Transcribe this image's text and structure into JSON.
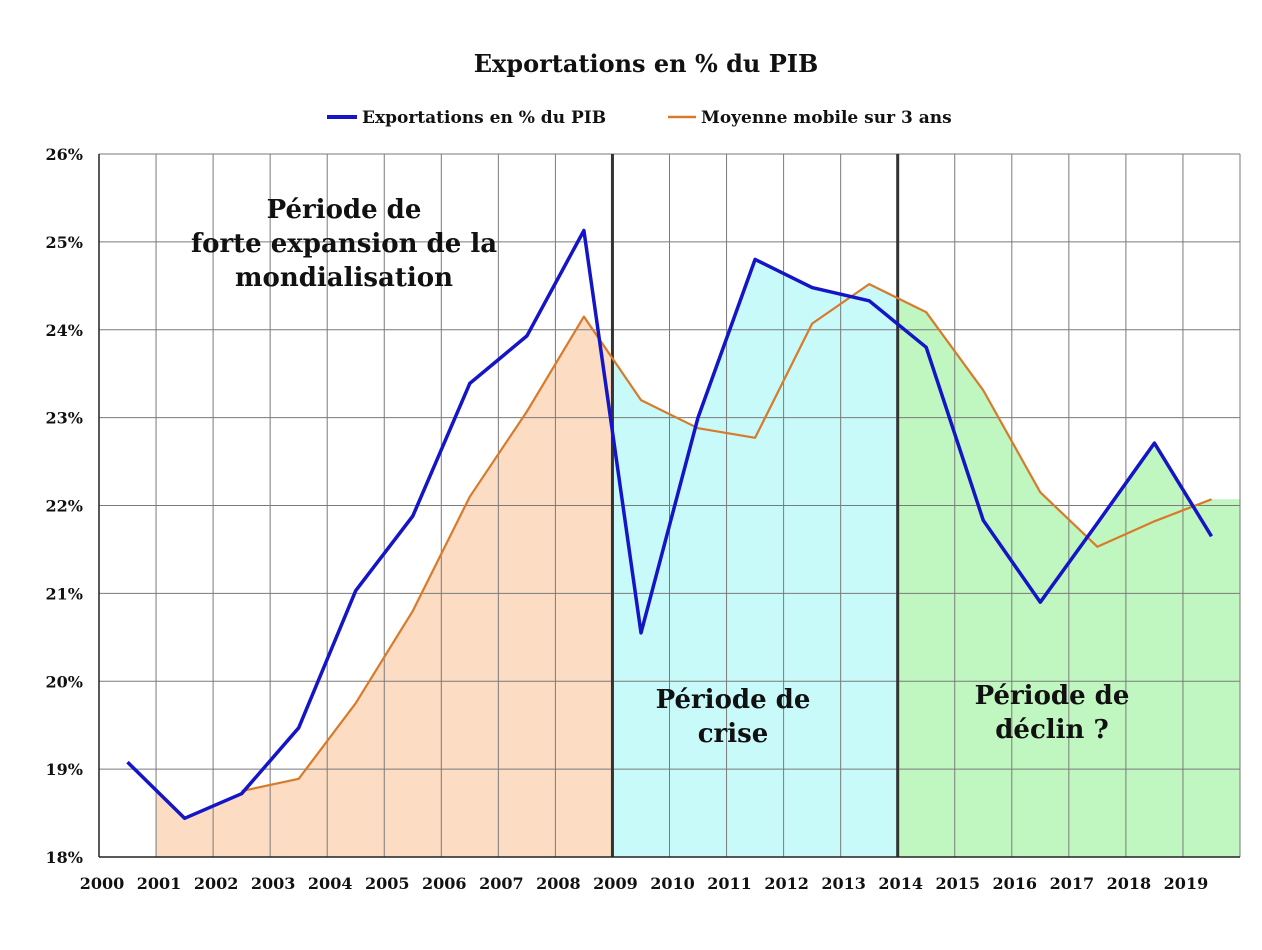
{
  "chart_data": {
    "type": "line",
    "title": "Exportations en % du PIB",
    "x": [
      "2000",
      "2001",
      "2002",
      "2003",
      "2004",
      "2005",
      "2006",
      "2007",
      "2008",
      "2009",
      "2010",
      "2011",
      "2012",
      "2013",
      "2014",
      "2015",
      "2016",
      "2017",
      "2018",
      "2019"
    ],
    "series": [
      {
        "name": "Exportations en % du PIB",
        "color": "#1515c8",
        "values": [
          19.08,
          18.44,
          18.72,
          19.47,
          21.03,
          21.88,
          23.39,
          23.93,
          25.13,
          20.55,
          23.0,
          24.8,
          24.48,
          24.33,
          23.8,
          21.83,
          20.9,
          21.8,
          22.71,
          21.65
        ]
      },
      {
        "name": "Moyenne mobile sur 3 ans",
        "color": "#d97a2a",
        "values": [
          null,
          null,
          18.75,
          18.89,
          19.75,
          20.8,
          22.1,
          23.07,
          24.15,
          23.2,
          22.88,
          22.77,
          24.07,
          24.52,
          24.2,
          23.31,
          22.15,
          21.53,
          21.82,
          22.07
        ]
      }
    ],
    "ylim": [
      18,
      26
    ],
    "y_ticks": [
      "18%",
      "19%",
      "20%",
      "21%",
      "22%",
      "23%",
      "24%",
      "25%",
      "26%"
    ],
    "grid": true,
    "legend_position": "top-center",
    "dividers": [
      "2008",
      "2013"
    ],
    "regions": [
      {
        "from": "2000",
        "to": "2008",
        "color": "#fcdcc2"
      },
      {
        "from": "2008",
        "to": "2013",
        "color": "#c8fafa"
      },
      {
        "from": "2013",
        "to": "2019",
        "color": "#c0f7c0"
      }
    ],
    "annotations": [
      {
        "lines": [
          "Période de",
          "forte expansion de la",
          "mondialisation"
        ]
      },
      {
        "lines": [
          "Période de",
          "crise"
        ]
      },
      {
        "lines": [
          "Période de",
          "déclin ?"
        ]
      }
    ]
  }
}
